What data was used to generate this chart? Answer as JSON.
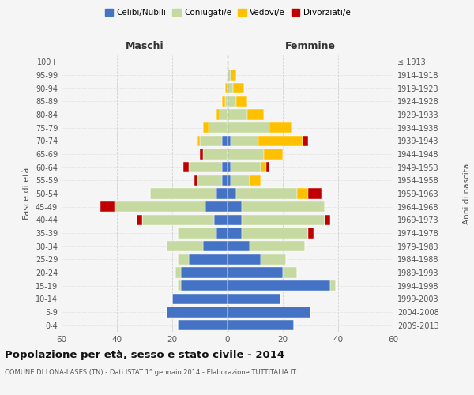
{
  "age_groups": [
    "0-4",
    "5-9",
    "10-14",
    "15-19",
    "20-24",
    "25-29",
    "30-34",
    "35-39",
    "40-44",
    "45-49",
    "50-54",
    "55-59",
    "60-64",
    "65-69",
    "70-74",
    "75-79",
    "80-84",
    "85-89",
    "90-94",
    "95-99",
    "100+"
  ],
  "birth_years": [
    "2009-2013",
    "2004-2008",
    "1999-2003",
    "1994-1998",
    "1989-1993",
    "1984-1988",
    "1979-1983",
    "1974-1978",
    "1969-1973",
    "1964-1968",
    "1959-1963",
    "1954-1958",
    "1949-1953",
    "1944-1948",
    "1939-1943",
    "1934-1938",
    "1929-1933",
    "1924-1928",
    "1919-1923",
    "1914-1918",
    "≤ 1913"
  ],
  "colors": {
    "celibi": "#4472c4",
    "coniugati": "#c6d9a0",
    "vedovi": "#ffc000",
    "divorziati": "#c00000"
  },
  "maschi": {
    "celibi": [
      18,
      22,
      20,
      17,
      17,
      14,
      9,
      4,
      5,
      8,
      4,
      2,
      2,
      0,
      2,
      0,
      0,
      0,
      0,
      0,
      0
    ],
    "coniugati": [
      0,
      0,
      0,
      1,
      2,
      4,
      13,
      14,
      26,
      33,
      24,
      9,
      12,
      9,
      8,
      7,
      3,
      1,
      0,
      0,
      0
    ],
    "vedovi": [
      0,
      0,
      0,
      0,
      0,
      0,
      0,
      0,
      0,
      0,
      0,
      0,
      0,
      0,
      1,
      2,
      1,
      1,
      1,
      0,
      0
    ],
    "divorziati": [
      0,
      0,
      0,
      0,
      0,
      0,
      0,
      0,
      2,
      5,
      0,
      1,
      2,
      1,
      0,
      0,
      0,
      0,
      0,
      0,
      0
    ]
  },
  "femmine": {
    "celibi": [
      24,
      30,
      19,
      37,
      20,
      12,
      8,
      5,
      5,
      5,
      3,
      1,
      1,
      0,
      1,
      0,
      0,
      0,
      0,
      0,
      0
    ],
    "coniugati": [
      0,
      0,
      0,
      2,
      5,
      9,
      20,
      24,
      30,
      30,
      22,
      7,
      11,
      13,
      10,
      15,
      7,
      3,
      2,
      1,
      0
    ],
    "vedovi": [
      0,
      0,
      0,
      0,
      0,
      0,
      0,
      0,
      0,
      0,
      4,
      4,
      2,
      7,
      16,
      8,
      6,
      4,
      4,
      2,
      0
    ],
    "divorziati": [
      0,
      0,
      0,
      0,
      0,
      0,
      0,
      2,
      2,
      0,
      5,
      0,
      1,
      0,
      2,
      0,
      0,
      0,
      0,
      0,
      0
    ]
  },
  "xlim": 60,
  "title": "Popolazione per età, sesso e stato civile - 2014",
  "subtitle": "COMUNE DI LONA-LASES (TN) - Dati ISTAT 1° gennaio 2014 - Elaborazione TUTTITALIA.IT",
  "ylabel_left": "Fasce di età",
  "ylabel_right": "Anni di nascita",
  "maschi_label": "Maschi",
  "femmine_label": "Femmine",
  "legend_items": [
    "Celibi/Nubili",
    "Coniugati/e",
    "Vedovi/e",
    "Divorziati/e"
  ],
  "background_color": "#f5f5f5",
  "grid_color": "#cccccc"
}
